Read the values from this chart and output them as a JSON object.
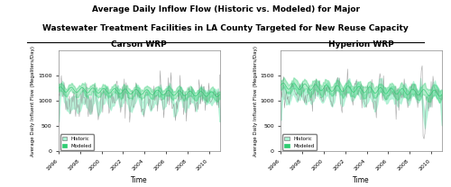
{
  "title_line1": "Average Daily Inflow Flow (Historic vs. Modeled) for Major",
  "title_line2": "Wastewater Treatment Facilities in LA County Targeted for New Reuse Capacity",
  "subplot_titles": [
    "Carson WRP",
    "Hyperion WRP"
  ],
  "xlabel": "Time",
  "ylabel": "Average Daily Influent Flow (Megaliters/Day)",
  "x_start_year": 1996,
  "x_end_year": 2011,
  "x_tick_years": [
    1996,
    1998,
    2000,
    2002,
    2004,
    2006,
    2008,
    2010
  ],
  "ylim": [
    0,
    2000
  ],
  "yticks": [
    0,
    500,
    1000,
    1500
  ],
  "historic_band_color": "#aaf0d1",
  "modeled_color": "#2ecc71",
  "historic_line_color": "#888888",
  "background_color": "#ffffff",
  "legend_labels": [
    "Historic",
    "Modeled"
  ],
  "seed": 42
}
